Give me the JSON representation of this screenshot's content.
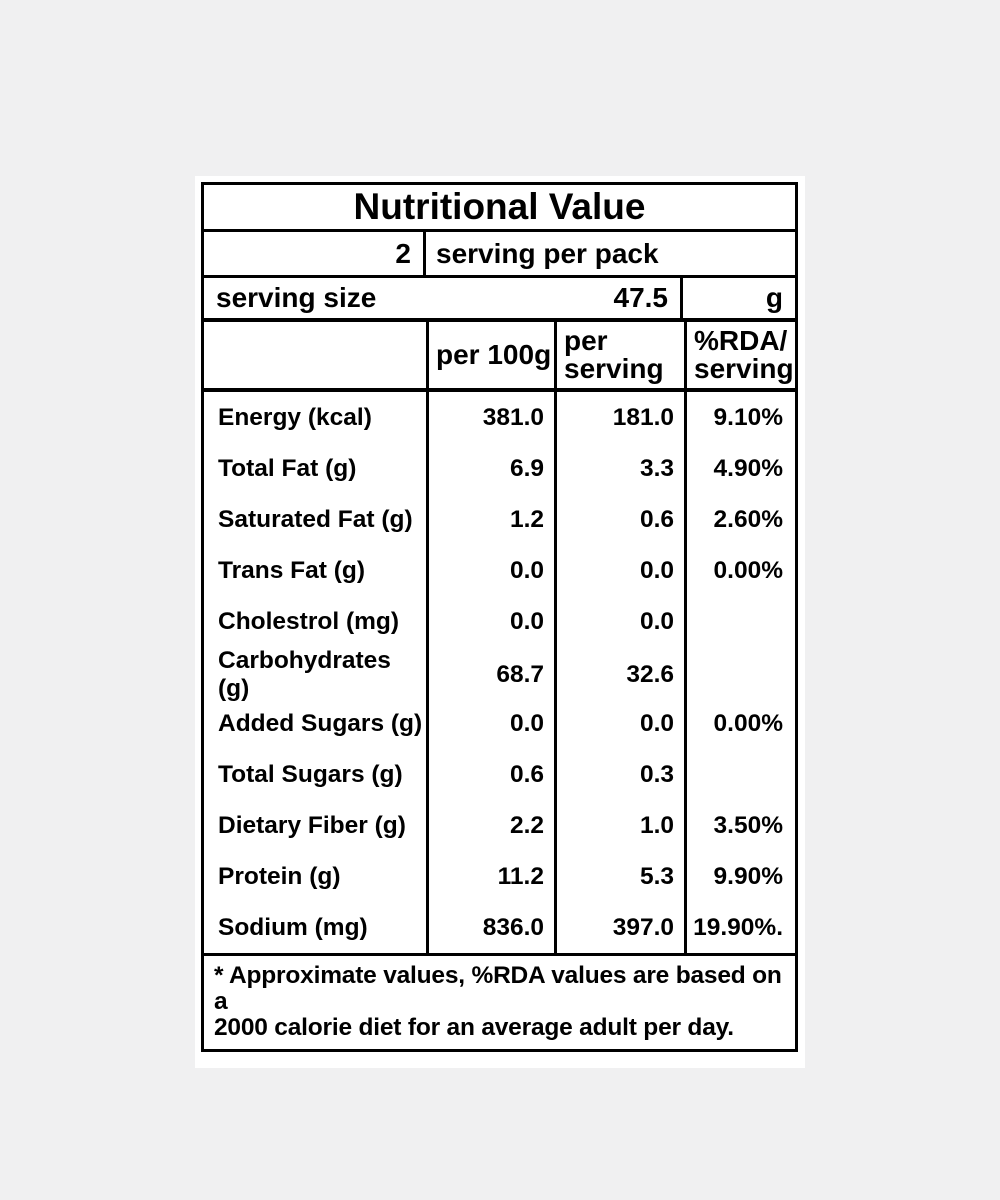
{
  "page": {
    "background_color": "#f0f0f1",
    "card_background": "#ffffff",
    "line_color": "#000000",
    "text_color": "#000000"
  },
  "label": {
    "title": "Nutritional Value",
    "servings": {
      "count": "2",
      "text": "serving per pack"
    },
    "serving_size": {
      "label": "serving size",
      "value": "47.5",
      "unit": "g"
    },
    "column_headers": {
      "per_100g": "per 100g",
      "per_serving_line1": "per",
      "per_serving_line2": "serving",
      "rda_line1": "%RDA/",
      "rda_line2": "serving"
    },
    "rows": [
      {
        "name": "Energy (kcal)",
        "per_100g": "381.0",
        "per_serving": "181.0",
        "rda": "9.10%"
      },
      {
        "name": "Total Fat (g)",
        "per_100g": "6.9",
        "per_serving": "3.3",
        "rda": "4.90%"
      },
      {
        "name": "Saturated Fat (g)",
        "per_100g": "1.2",
        "per_serving": "0.6",
        "rda": "2.60%"
      },
      {
        "name": "Trans Fat (g)",
        "per_100g": "0.0",
        "per_serving": "0.0",
        "rda": "0.00%"
      },
      {
        "name": "Cholestrol (mg)",
        "per_100g": "0.0",
        "per_serving": "0.0",
        "rda": ""
      },
      {
        "name": "Carbohydrates (g)",
        "per_100g": "68.7",
        "per_serving": "32.6",
        "rda": ""
      },
      {
        "name": "Added Sugars (g)",
        "per_100g": "0.0",
        "per_serving": "0.0",
        "rda": "0.00%"
      },
      {
        "name": "Total Sugars (g)",
        "per_100g": "0.6",
        "per_serving": "0.3",
        "rda": ""
      },
      {
        "name": "Dietary Fiber (g)",
        "per_100g": "2.2",
        "per_serving": "1.0",
        "rda": "3.50%"
      },
      {
        "name": "Protein (g)",
        "per_100g": "11.2",
        "per_serving": "5.3",
        "rda": "9.90%"
      },
      {
        "name": "Sodium (mg)",
        "per_100g": "836.0",
        "per_serving": "397.0",
        "rda": "19.90%."
      }
    ],
    "footnote_line1": "* Approximate values, %RDA values are based on a",
    "footnote_line2": "2000 calorie diet for an average adult per day."
  }
}
